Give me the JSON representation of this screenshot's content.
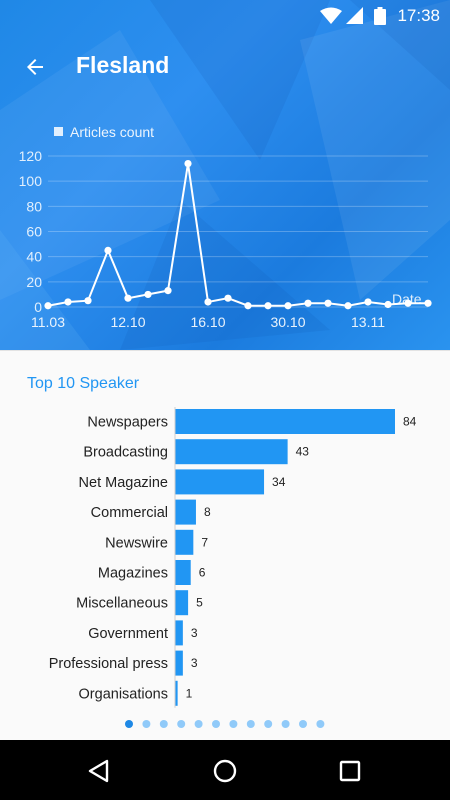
{
  "status": {
    "time": "17:38"
  },
  "header": {
    "title": "Flesland"
  },
  "icons": {
    "back": "arrow-left-icon",
    "wifi": "wifi-icon",
    "signal": "cellular-signal-icon",
    "battery": "battery-icon",
    "nav_back": "triangle-back-icon",
    "nav_home": "circle-home-icon",
    "nav_recents": "square-recents-icon"
  },
  "colors": {
    "header_bg": "#2b8de8",
    "line": "#ffffff",
    "bar": "#2196f3",
    "bar_title": "#2196f3",
    "dot_active": "#1e88e5",
    "dot_inactive": "#90caf9"
  },
  "chart_data": [
    {
      "type": "line",
      "legend": "Articles count",
      "legend_position": "top-left",
      "xlabel": "Date",
      "ylabel": "",
      "ylim": [
        0,
        120
      ],
      "yticks": [
        "0",
        "20",
        "40",
        "60",
        "80",
        "100",
        "120"
      ],
      "xticks": [
        "11.03",
        "12.10",
        "16.10",
        "30.10",
        "13.11"
      ],
      "values": [
        1,
        4,
        5,
        45,
        7,
        10,
        13,
        114,
        4,
        7,
        1,
        1,
        1,
        3,
        3,
        1,
        4,
        2,
        3,
        3
      ],
      "grid": true
    },
    {
      "type": "bar",
      "orientation": "horizontal",
      "title": "Top 10 Speaker",
      "categories": [
        "Newspapers",
        "Broadcasting",
        "Net Magazine",
        "Commercial",
        "Newswire",
        "Magazines",
        "Miscellaneous",
        "Government",
        "Professional press",
        "Organisations"
      ],
      "values": [
        84,
        43,
        34,
        8,
        7,
        6,
        5,
        3,
        3,
        1
      ]
    }
  ],
  "pager": {
    "count": 12,
    "active": 0
  }
}
